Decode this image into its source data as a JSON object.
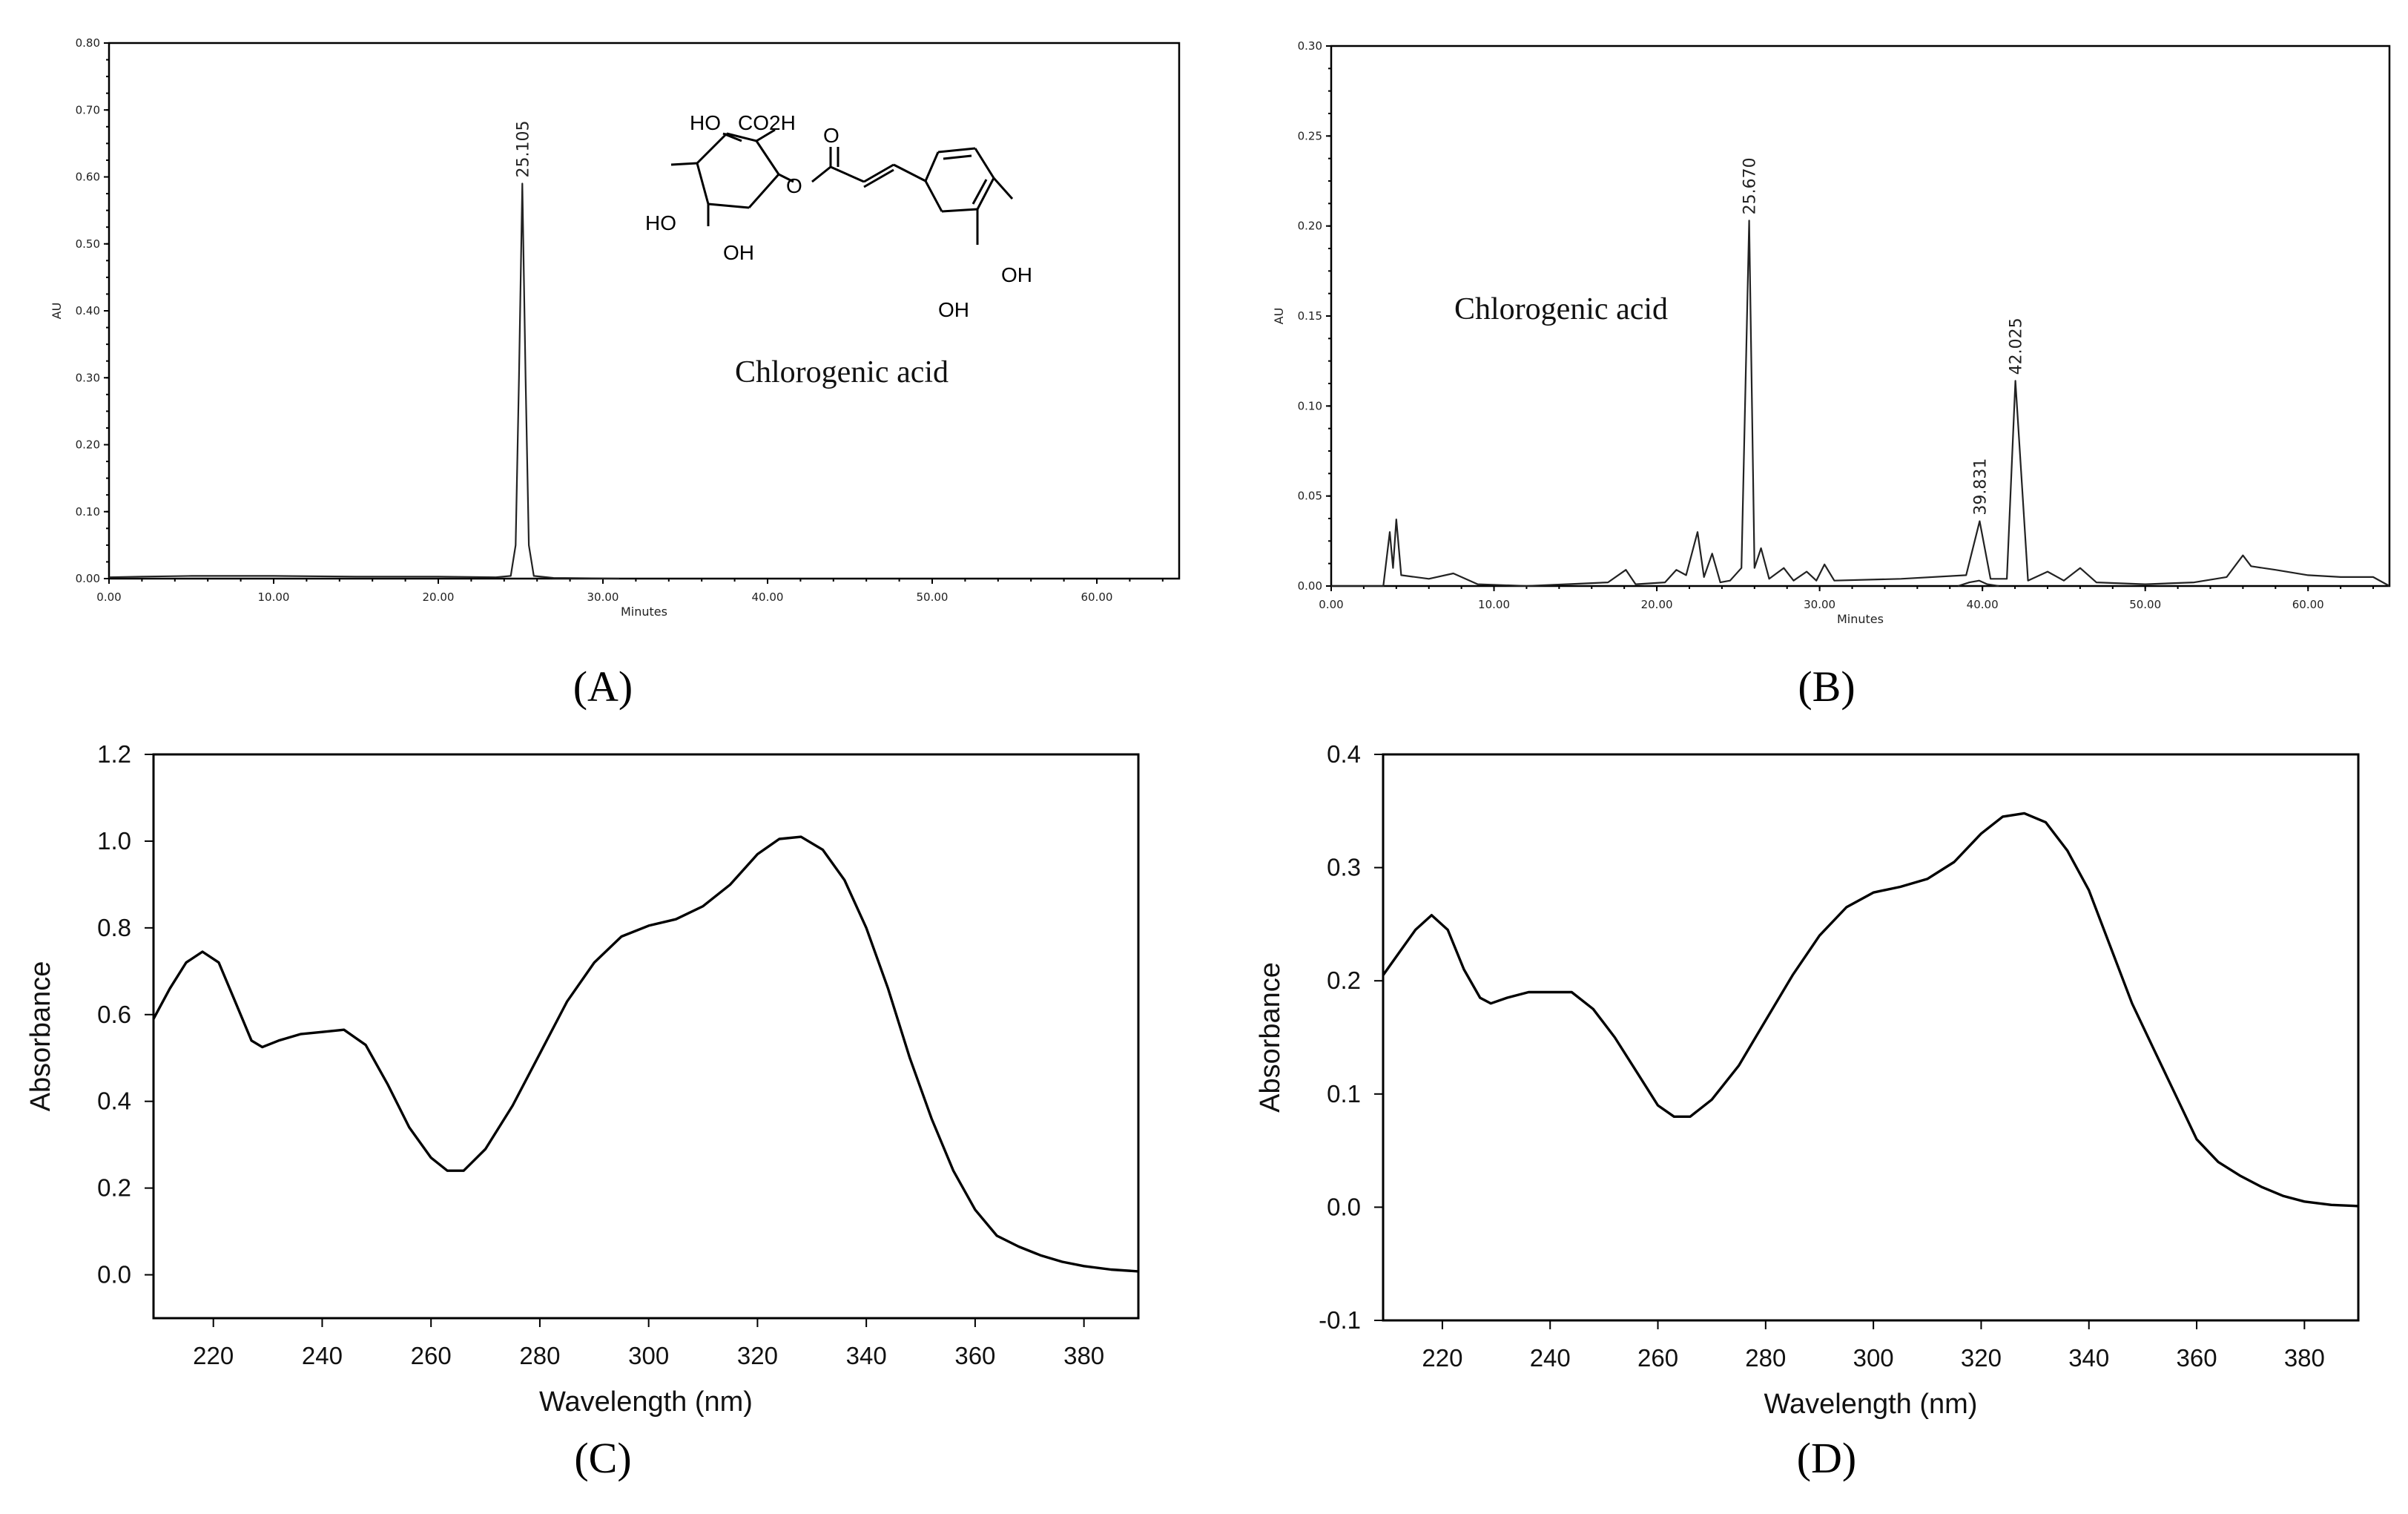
{
  "chart_data": [
    {
      "id": "A",
      "type": "line",
      "panel_label": "(A)",
      "xlabel": "Minutes",
      "ylabel": "AU",
      "xlim": [
        0,
        65
      ],
      "ylim": [
        0,
        0.8
      ],
      "x_ticks": [
        "0.00",
        "10.00",
        "20.00",
        "30.00",
        "40.00",
        "50.00",
        "60.00"
      ],
      "y_ticks": [
        "0.00",
        "0.10",
        "0.20",
        "0.30",
        "0.40",
        "0.50",
        "0.60",
        "0.70",
        "0.80"
      ],
      "peaks": [
        {
          "x": 25.105,
          "y": 0.59,
          "label": "25.105"
        }
      ],
      "compound_label": "Chlorogenic acid",
      "structure_atoms": [
        "HO",
        "CO2H",
        "HO",
        "OH",
        "O",
        "O",
        "OH",
        "OH"
      ],
      "series": [
        {
          "name": "chromatogram",
          "points": [
            [
              0,
              0.002
            ],
            [
              2,
              0.003
            ],
            [
              5,
              0.004
            ],
            [
              10,
              0.004
            ],
            [
              15,
              0.003
            ],
            [
              20,
              0.003
            ],
            [
              23.5,
              0.002
            ],
            [
              24.4,
              0.004
            ],
            [
              24.7,
              0.05
            ],
            [
              24.9,
              0.3
            ],
            [
              25.105,
              0.59
            ],
            [
              25.3,
              0.3
            ],
            [
              25.5,
              0.05
            ],
            [
              25.8,
              0.004
            ],
            [
              27,
              0.001
            ],
            [
              31,
              0.0
            ]
          ]
        }
      ]
    },
    {
      "id": "B",
      "type": "line",
      "panel_label": "(B)",
      "xlabel": "Minutes",
      "ylabel": "AU",
      "xlim": [
        0,
        65
      ],
      "ylim": [
        0,
        0.3
      ],
      "x_ticks": [
        "0.00",
        "10.00",
        "20.00",
        "30.00",
        "40.00",
        "50.00",
        "60.00"
      ],
      "y_ticks": [
        "0.00",
        "0.05",
        "0.10",
        "0.15",
        "0.20",
        "0.25",
        "0.30"
      ],
      "peaks": [
        {
          "x": 25.67,
          "y": 0.203,
          "label": "25.670"
        },
        {
          "x": 39.831,
          "y": 0.036,
          "label": "39.831"
        },
        {
          "x": 42.025,
          "y": 0.114,
          "label": "42.025"
        }
      ],
      "compound_label": "Chlorogenic acid",
      "series": [
        {
          "name": "chromatogram",
          "points": [
            [
              0,
              0.0
            ],
            [
              3.2,
              0.0
            ],
            [
              3.6,
              0.03
            ],
            [
              3.8,
              0.01
            ],
            [
              4.0,
              0.037
            ],
            [
              4.3,
              0.006
            ],
            [
              6,
              0.004
            ],
            [
              7.5,
              0.007
            ],
            [
              9,
              0.001
            ],
            [
              12,
              0.0
            ],
            [
              17,
              0.002
            ],
            [
              18.1,
              0.009
            ],
            [
              18.7,
              0.001
            ],
            [
              20.5,
              0.002
            ],
            [
              21.2,
              0.009
            ],
            [
              21.8,
              0.006
            ],
            [
              22.5,
              0.03
            ],
            [
              22.9,
              0.005
            ],
            [
              23.4,
              0.018
            ],
            [
              23.9,
              0.002
            ],
            [
              24.5,
              0.003
            ],
            [
              25.2,
              0.01
            ],
            [
              25.67,
              0.203
            ],
            [
              26.0,
              0.01
            ],
            [
              26.4,
              0.021
            ],
            [
              26.9,
              0.004
            ],
            [
              27.8,
              0.01
            ],
            [
              28.4,
              0.003
            ],
            [
              29.2,
              0.008
            ],
            [
              29.8,
              0.003
            ],
            [
              30.3,
              0.012
            ],
            [
              30.9,
              0.003
            ],
            [
              35,
              0.004
            ],
            [
              39.0,
              0.006
            ],
            [
              39.831,
              0.036
            ],
            [
              40.5,
              0.004
            ],
            [
              41.5,
              0.004
            ],
            [
              42.025,
              0.114
            ],
            [
              42.8,
              0.003
            ],
            [
              44,
              0.008
            ],
            [
              45,
              0.003
            ],
            [
              46,
              0.01
            ],
            [
              47,
              0.002
            ],
            [
              50,
              0.001
            ],
            [
              53,
              0.002
            ],
            [
              55,
              0.005
            ],
            [
              56.0,
              0.017
            ],
            [
              56.5,
              0.011
            ],
            [
              58,
              0.009
            ],
            [
              60,
              0.006
            ],
            [
              62,
              0.005
            ],
            [
              64,
              0.005
            ],
            [
              65,
              0.0
            ]
          ]
        },
        {
          "name": "overlay",
          "points": [
            [
              38.5,
              0.0
            ],
            [
              39.2,
              0.002
            ],
            [
              39.8,
              0.003
            ],
            [
              40.3,
              0.001
            ],
            [
              41.0,
              0.0
            ]
          ]
        }
      ]
    },
    {
      "id": "C",
      "type": "line",
      "panel_label": "(C)",
      "xlabel": "Wavelength (nm)",
      "ylabel": "Absorbance",
      "xlim": [
        209,
        390
      ],
      "ylim": [
        -0.1,
        1.2
      ],
      "x_ticks": [
        "220",
        "240",
        "260",
        "280",
        "300",
        "320",
        "340",
        "360",
        "380"
      ],
      "y_ticks": [
        "0.0",
        "0.2",
        "0.4",
        "0.6",
        "0.8",
        "1.0",
        "1.2"
      ],
      "series": [
        {
          "name": "UV spectrum",
          "points": [
            [
              209,
              0.59
            ],
            [
              212,
              0.66
            ],
            [
              215,
              0.72
            ],
            [
              218,
              0.745
            ],
            [
              221,
              0.72
            ],
            [
              224,
              0.63
            ],
            [
              227,
              0.54
            ],
            [
              229,
              0.525
            ],
            [
              232,
              0.54
            ],
            [
              236,
              0.555
            ],
            [
              240,
              0.56
            ],
            [
              244,
              0.565
            ],
            [
              248,
              0.53
            ],
            [
              252,
              0.44
            ],
            [
              256,
              0.34
            ],
            [
              260,
              0.27
            ],
            [
              263,
              0.24
            ],
            [
              266,
              0.24
            ],
            [
              270,
              0.29
            ],
            [
              275,
              0.39
            ],
            [
              280,
              0.51
            ],
            [
              285,
              0.63
            ],
            [
              290,
              0.72
            ],
            [
              295,
              0.78
            ],
            [
              300,
              0.805
            ],
            [
              305,
              0.82
            ],
            [
              310,
              0.85
            ],
            [
              315,
              0.9
            ],
            [
              320,
              0.97
            ],
            [
              324,
              1.005
            ],
            [
              328,
              1.01
            ],
            [
              332,
              0.98
            ],
            [
              336,
              0.91
            ],
            [
              340,
              0.8
            ],
            [
              344,
              0.66
            ],
            [
              348,
              0.5
            ],
            [
              352,
              0.36
            ],
            [
              356,
              0.24
            ],
            [
              360,
              0.15
            ],
            [
              364,
              0.09
            ],
            [
              368,
              0.065
            ],
            [
              372,
              0.045
            ],
            [
              376,
              0.03
            ],
            [
              380,
              0.02
            ],
            [
              385,
              0.012
            ],
            [
              390,
              0.008
            ]
          ]
        }
      ]
    },
    {
      "id": "D",
      "type": "line",
      "panel_label": "(D)",
      "xlabel": "Wavelength (nm)",
      "ylabel": "Absorbance",
      "xlim": [
        209,
        390
      ],
      "ylim": [
        -0.1,
        0.4
      ],
      "x_ticks": [
        "220",
        "240",
        "260",
        "280",
        "300",
        "320",
        "340",
        "360",
        "380"
      ],
      "y_ticks": [
        "-0.1",
        "0.0",
        "0.1",
        "0.2",
        "0.3",
        "0.4"
      ],
      "series": [
        {
          "name": "UV spectrum",
          "points": [
            [
              209,
              0.205
            ],
            [
              212,
              0.225
            ],
            [
              215,
              0.245
            ],
            [
              218,
              0.258
            ],
            [
              221,
              0.245
            ],
            [
              224,
              0.21
            ],
            [
              227,
              0.185
            ],
            [
              229,
              0.18
            ],
            [
              232,
              0.185
            ],
            [
              236,
              0.19
            ],
            [
              240,
              0.19
            ],
            [
              244,
              0.19
            ],
            [
              248,
              0.175
            ],
            [
              252,
              0.15
            ],
            [
              256,
              0.12
            ],
            [
              260,
              0.09
            ],
            [
              263,
              0.08
            ],
            [
              266,
              0.08
            ],
            [
              270,
              0.095
            ],
            [
              275,
              0.125
            ],
            [
              280,
              0.165
            ],
            [
              285,
              0.205
            ],
            [
              290,
              0.24
            ],
            [
              295,
              0.265
            ],
            [
              300,
              0.278
            ],
            [
              305,
              0.283
            ],
            [
              310,
              0.29
            ],
            [
              315,
              0.305
            ],
            [
              320,
              0.33
            ],
            [
              324,
              0.345
            ],
            [
              328,
              0.348
            ],
            [
              332,
              0.34
            ],
            [
              336,
              0.315
            ],
            [
              340,
              0.28
            ],
            [
              344,
              0.23
            ],
            [
              348,
              0.18
            ],
            [
              352,
              0.14
            ],
            [
              356,
              0.1
            ],
            [
              360,
              0.06
            ],
            [
              364,
              0.04
            ],
            [
              368,
              0.028
            ],
            [
              372,
              0.018
            ],
            [
              376,
              0.01
            ],
            [
              380,
              0.005
            ],
            [
              385,
              0.002
            ],
            [
              390,
              0.001
            ]
          ]
        }
      ]
    }
  ]
}
